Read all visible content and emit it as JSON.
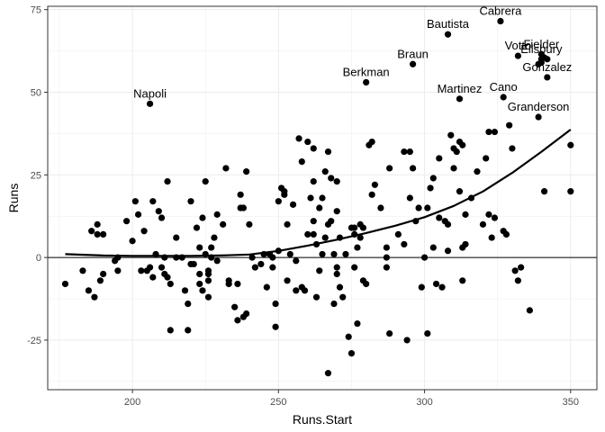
{
  "chart_data": {
    "type": "scatter",
    "title": "",
    "xlabel": "Runs.Start",
    "ylabel": "Runs",
    "xlim": [
      171,
      359
    ],
    "ylim": [
      -40,
      76
    ],
    "xticks": [
      200,
      250,
      300,
      350
    ],
    "yticks": [
      -25,
      0,
      25,
      50,
      75
    ],
    "grid": true,
    "hline": 0,
    "colors": {
      "points": "#000000",
      "trend": "#000000",
      "grid": "#ebebeb",
      "panel_border": "#333333"
    },
    "trend_line": {
      "x": [
        177,
        190,
        200,
        210,
        220,
        230,
        240,
        250,
        260,
        270,
        280,
        290,
        300,
        310,
        320,
        330,
        340,
        350
      ],
      "y": [
        1.0,
        0.6,
        0.5,
        0.5,
        0.5,
        0.6,
        0.9,
        2.0,
        3.6,
        5.4,
        7.4,
        9.6,
        12.2,
        15.6,
        20.0,
        25.6,
        32.0,
        38.7
      ]
    },
    "labeled_points": [
      {
        "name": "Cabrera",
        "x": 326,
        "y": 71.5
      },
      {
        "name": "Bautista",
        "x": 308,
        "y": 67.5
      },
      {
        "name": "Votto",
        "x": 332,
        "y": 61
      },
      {
        "name": "Fielder",
        "x": 340,
        "y": 61.5
      },
      {
        "name": "Ellsbury",
        "x": 340,
        "y": 60
      },
      {
        "name": "Braun",
        "x": 296,
        "y": 58.5
      },
      {
        "name": "Gonzalez",
        "x": 342,
        "y": 54.5
      },
      {
        "name": "Berkman",
        "x": 280,
        "y": 53
      },
      {
        "name": "Cano",
        "x": 327,
        "y": 48.5
      },
      {
        "name": "Martinez",
        "x": 312,
        "y": 48
      },
      {
        "name": "Napoli",
        "x": 206,
        "y": 46.5
      },
      {
        "name": "Granderson",
        "x": 339,
        "y": 42.5
      }
    ],
    "points": [
      [
        177,
        -8
      ],
      [
        183,
        -4
      ],
      [
        185,
        -10
      ],
      [
        186,
        8
      ],
      [
        187,
        -12
      ],
      [
        188,
        10
      ],
      [
        188,
        7
      ],
      [
        189,
        -7
      ],
      [
        190,
        -5
      ],
      [
        190,
        7
      ],
      [
        194,
        -1
      ],
      [
        195,
        -4
      ],
      [
        195,
        0
      ],
      [
        198,
        11
      ],
      [
        200,
        5
      ],
      [
        201,
        17
      ],
      [
        202,
        13
      ],
      [
        203,
        -4
      ],
      [
        204,
        8
      ],
      [
        205,
        -4
      ],
      [
        206,
        -3
      ],
      [
        207,
        -6
      ],
      [
        207,
        17
      ],
      [
        208,
        1
      ],
      [
        209,
        14
      ],
      [
        210,
        12
      ],
      [
        210,
        -3
      ],
      [
        211,
        0
      ],
      [
        211,
        -5
      ],
      [
        212,
        23
      ],
      [
        212,
        -6
      ],
      [
        213,
        -8
      ],
      [
        213,
        -22
      ],
      [
        215,
        6
      ],
      [
        215,
        0
      ],
      [
        217,
        0
      ],
      [
        218,
        -10
      ],
      [
        219,
        -14
      ],
      [
        219,
        -22
      ],
      [
        220,
        -2
      ],
      [
        220,
        17
      ],
      [
        221,
        -2
      ],
      [
        222,
        9
      ],
      [
        223,
        -5
      ],
      [
        223,
        -8
      ],
      [
        223,
        3
      ],
      [
        224,
        12
      ],
      [
        224,
        -10
      ],
      [
        225,
        23
      ],
      [
        225,
        1
      ],
      [
        226,
        -4
      ],
      [
        226,
        -5
      ],
      [
        226,
        -7
      ],
      [
        226,
        -12
      ],
      [
        227,
        0
      ],
      [
        227,
        3
      ],
      [
        228,
        6
      ],
      [
        229,
        -1
      ],
      [
        229,
        13
      ],
      [
        231,
        10
      ],
      [
        232,
        27
      ],
      [
        233,
        -8
      ],
      [
        233,
        -7
      ],
      [
        235,
        -15
      ],
      [
        236,
        -19
      ],
      [
        236,
        -8
      ],
      [
        237,
        19
      ],
      [
        237,
        15
      ],
      [
        238,
        -18
      ],
      [
        238,
        15
      ],
      [
        239,
        -17
      ],
      [
        239,
        26
      ],
      [
        240,
        10
      ],
      [
        241,
        0
      ],
      [
        242,
        -3
      ],
      [
        244,
        -2
      ],
      [
        245,
        1
      ],
      [
        246,
        -9
      ],
      [
        247,
        1
      ],
      [
        248,
        0
      ],
      [
        248,
        -3
      ],
      [
        249,
        -14
      ],
      [
        249,
        -21
      ],
      [
        250,
        2
      ],
      [
        250,
        17
      ],
      [
        251,
        21
      ],
      [
        252,
        20
      ],
      [
        252,
        19
      ],
      [
        253,
        -7
      ],
      [
        253,
        10
      ],
      [
        254,
        1
      ],
      [
        255,
        16
      ],
      [
        256,
        -10
      ],
      [
        256,
        -1
      ],
      [
        257,
        36
      ],
      [
        258,
        29
      ],
      [
        258,
        -9
      ],
      [
        259,
        -10
      ],
      [
        260,
        7
      ],
      [
        260,
        35
      ],
      [
        261,
        18
      ],
      [
        262,
        33
      ],
      [
        262,
        23
      ],
      [
        262,
        7
      ],
      [
        262,
        11
      ],
      [
        263,
        4
      ],
      [
        263,
        -12
      ],
      [
        264,
        15
      ],
      [
        264,
        -4
      ],
      [
        265,
        18
      ],
      [
        265,
        1
      ],
      [
        266,
        6
      ],
      [
        266,
        26
      ],
      [
        267,
        -35
      ],
      [
        267,
        32
      ],
      [
        267,
        10
      ],
      [
        268,
        24
      ],
      [
        268,
        11
      ],
      [
        269,
        -14
      ],
      [
        269,
        1
      ],
      [
        270,
        -3
      ],
      [
        270,
        -5
      ],
      [
        270,
        14
      ],
      [
        270,
        23
      ],
      [
        271,
        6
      ],
      [
        271,
        -9
      ],
      [
        272,
        -12
      ],
      [
        273,
        1
      ],
      [
        274,
        -24
      ],
      [
        275,
        -29
      ],
      [
        275,
        9
      ],
      [
        276,
        7
      ],
      [
        276,
        -3
      ],
      [
        276,
        9
      ],
      [
        277,
        -20
      ],
      [
        277,
        3
      ],
      [
        278,
        10
      ],
      [
        278,
        6
      ],
      [
        279,
        -7
      ],
      [
        279,
        9
      ],
      [
        280,
        -8
      ],
      [
        281,
        34
      ],
      [
        282,
        35
      ],
      [
        282,
        19
      ],
      [
        283,
        22
      ],
      [
        285,
        15
      ],
      [
        287,
        -3
      ],
      [
        287,
        0
      ],
      [
        287,
        3
      ],
      [
        288,
        -23
      ],
      [
        288,
        27
      ],
      [
        291,
        7
      ],
      [
        293,
        32
      ],
      [
        293,
        4
      ],
      [
        294,
        -25
      ],
      [
        295,
        18
      ],
      [
        295,
        32
      ],
      [
        296,
        27
      ],
      [
        297,
        11
      ],
      [
        298,
        15
      ],
      [
        299,
        -9
      ],
      [
        300,
        0
      ],
      [
        301,
        -23
      ],
      [
        301,
        15
      ],
      [
        302,
        21
      ],
      [
        303,
        24
      ],
      [
        303,
        3
      ],
      [
        304,
        -8
      ],
      [
        305,
        30
      ],
      [
        305,
        12
      ],
      [
        306,
        -9
      ],
      [
        307,
        11
      ],
      [
        308,
        2
      ],
      [
        308,
        10
      ],
      [
        309,
        37
      ],
      [
        310,
        27
      ],
      [
        310,
        33
      ],
      [
        311,
        32
      ],
      [
        312,
        20
      ],
      [
        312,
        35
      ],
      [
        313,
        3
      ],
      [
        313,
        -7
      ],
      [
        313,
        34
      ],
      [
        314,
        4
      ],
      [
        314,
        13
      ],
      [
        316,
        18
      ],
      [
        318,
        26
      ],
      [
        320,
        10
      ],
      [
        321,
        30
      ],
      [
        322,
        13
      ],
      [
        322,
        38
      ],
      [
        323,
        6
      ],
      [
        324,
        38
      ],
      [
        324,
        12
      ],
      [
        327,
        8
      ],
      [
        328,
        7
      ],
      [
        329,
        40
      ],
      [
        330,
        33
      ],
      [
        331,
        -4
      ],
      [
        332,
        -7
      ],
      [
        333,
        -3
      ],
      [
        336,
        -16
      ],
      [
        341,
        20
      ],
      [
        350,
        34
      ],
      [
        350,
        20
      ],
      [
        339,
        58.5
      ],
      [
        340,
        59
      ],
      [
        341,
        60.5
      ],
      [
        342,
        60
      ]
    ]
  }
}
